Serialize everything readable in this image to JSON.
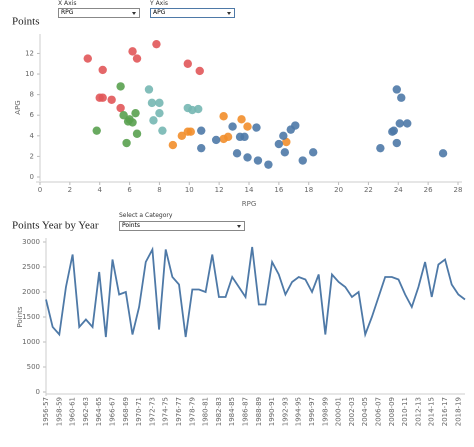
{
  "controls": {
    "x_axis_label": "X Axis",
    "x_axis_value": "RPG",
    "y_axis_label": "Y Axis",
    "y_axis_value": "APG",
    "category_label": "Select a Category",
    "category_value": "Points"
  },
  "chart_data": [
    {
      "type": "scatter",
      "title": "Points",
      "x_label": "RPG",
      "y_label": "APG",
      "xlim": [
        0,
        28
      ],
      "xticks": [
        0,
        2,
        4,
        6,
        8,
        10,
        12,
        14,
        16,
        18,
        20,
        22,
        24,
        26,
        28
      ],
      "ylim": [
        0,
        13.5
      ],
      "yticks": [
        0,
        2,
        4,
        6,
        8,
        10,
        12
      ],
      "series": [
        {
          "color": "#e15759",
          "x": [
            3.2,
            4.2,
            4,
            4.2,
            4.8,
            5.4,
            6.2,
            6.5,
            7.8,
            9.9,
            10.7
          ],
          "y": [
            11.5,
            10.4,
            7.7,
            7.7,
            7.5,
            6.7,
            12.2,
            11.5,
            12.9,
            11,
            10.3
          ]
        },
        {
          "color": "#59a14f",
          "x": [
            5.4,
            3.8,
            5.6,
            5.9,
            6.2,
            6.4,
            5.8,
            6.5,
            6
          ],
          "y": [
            8.8,
            4.5,
            6,
            5.4,
            5.3,
            6.2,
            3.3,
            4.2,
            5.6
          ]
        },
        {
          "color": "#76b7b2",
          "x": [
            7.3,
            7.5,
            8,
            7.6,
            8,
            9.9,
            10.2,
            10.6,
            8.2
          ],
          "y": [
            8.5,
            7.2,
            7.2,
            5.5,
            6.2,
            6.7,
            6.5,
            6.6,
            4.5
          ]
        },
        {
          "color": "#f28e2b",
          "x": [
            8.9,
            9.5,
            9.9,
            12.3,
            12.3,
            12.6,
            13.5,
            13.9,
            16.5,
            10.1
          ],
          "y": [
            3.1,
            4,
            4.4,
            5.9,
            3.7,
            3.9,
            5.6,
            4.9,
            3.4,
            4.4
          ]
        },
        {
          "color": "#4e79a7",
          "x": [
            10.8,
            10.8,
            11.8,
            12.9,
            13.4,
            13.7,
            13.2,
            13.9,
            14.5,
            14.6,
            15.3,
            16.3,
            16.8,
            17.1,
            16,
            16.4,
            17.6,
            18.3,
            22.8,
            23.6,
            23.7,
            23.9,
            24.2,
            24.1,
            24.6,
            23.9,
            27
          ],
          "y": [
            4.5,
            2.8,
            3.6,
            4.9,
            3.9,
            3.9,
            2.3,
            1.9,
            4.8,
            1.6,
            1.2,
            4,
            4.6,
            5,
            3.2,
            2.4,
            1.6,
            2.4,
            2.8,
            4.4,
            4.5,
            8.5,
            7.7,
            5.2,
            5.2,
            3.3,
            2.3
          ]
        }
      ]
    },
    {
      "type": "line",
      "title": "Points Year by Year",
      "y_label": "Points",
      "color": "#4e79a7",
      "ylim": [
        0,
        3000
      ],
      "yticks": [
        0,
        500,
        1000,
        1500,
        2000,
        2500,
        3000
      ],
      "categories": [
        "1956-57",
        null,
        "1958-59",
        null,
        "1960-61",
        null,
        "1962-63",
        null,
        "1964-65",
        null,
        "1966-67",
        null,
        "1968-69",
        null,
        "1970-71",
        null,
        "1972-73",
        null,
        "1974-75",
        null,
        "1976-77",
        null,
        "1978-79",
        null,
        "1980-81",
        null,
        "1982-83",
        null,
        "1984-85",
        null,
        "1986-87",
        null,
        "1988-89",
        null,
        "1990-91",
        null,
        "1992-93",
        null,
        "1994-95",
        null,
        "1996-97",
        null,
        "1998-99",
        null,
        "2000-01",
        null,
        "2002-03",
        null,
        "2004-05",
        null,
        "2006-07",
        null,
        "2008-09",
        null,
        "2010-11",
        null,
        "2012-13",
        null,
        "2014-15",
        null,
        "2016-17",
        null,
        "2018-19",
        null
      ],
      "values": [
        1850,
        1300,
        1150,
        2100,
        2750,
        1300,
        1450,
        1300,
        2400,
        1100,
        2650,
        1950,
        2000,
        1150,
        1700,
        2600,
        2850,
        1250,
        2850,
        2300,
        2150,
        1100,
        2050,
        2050,
        2000,
        2750,
        1900,
        1900,
        2300,
        2100,
        1900,
        2900,
        1750,
        1750,
        2600,
        2350,
        1950,
        2200,
        2300,
        2250,
        2000,
        2350,
        1150,
        2350,
        2200,
        2100,
        1900,
        2000,
        1150,
        1500,
        1900,
        2300,
        2300,
        2250,
        1950,
        1700,
        2100,
        2600,
        1900,
        2550,
        2650,
        2150,
        1950,
        1850
      ]
    }
  ]
}
